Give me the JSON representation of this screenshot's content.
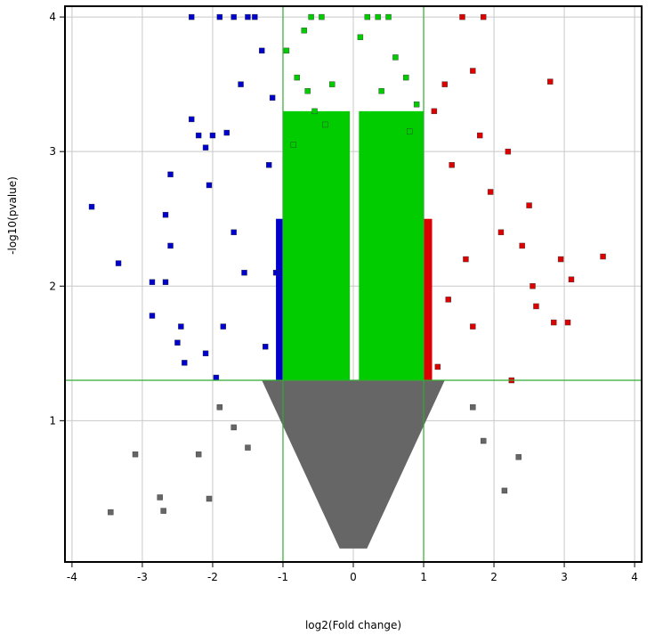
{
  "chart_data": {
    "type": "scatter",
    "title": "",
    "xlabel": "log2(Fold change)",
    "ylabel": "-log10(pvalue)",
    "xlim": [
      -4.1,
      4.1
    ],
    "ylim": [
      -0.05,
      4.08
    ],
    "x_ticks": [
      -4,
      -3,
      -2,
      -1,
      0,
      1,
      2,
      3,
      4
    ],
    "y_ticks": [
      1,
      2,
      3,
      4
    ],
    "grid": true,
    "legend": "none",
    "thresholds": {
      "log2fc": [
        -1,
        1
      ],
      "neg_log10_p": 1.3
    },
    "colors": {
      "down": "#0000cc",
      "unchanged_significant": "#00cc00",
      "up": "#dd0000",
      "not_significant": "#666666",
      "threshold_line": "#33aa33",
      "grid": "#c8c8c8"
    },
    "series": [
      {
        "color_key": "down",
        "points": [
          [
            -3.72,
            2.59
          ],
          [
            -3.34,
            2.17
          ],
          [
            -2.86,
            2.03
          ],
          [
            -2.86,
            1.78
          ],
          [
            -2.67,
            2.03
          ],
          [
            -2.67,
            2.53
          ],
          [
            -2.6,
            2.83
          ],
          [
            -2.6,
            2.3
          ],
          [
            -2.5,
            1.58
          ],
          [
            -2.45,
            1.7
          ],
          [
            -2.4,
            1.43
          ],
          [
            -2.3,
            3.24
          ],
          [
            -2.3,
            4.0
          ],
          [
            -2.2,
            3.12
          ],
          [
            -2.1,
            3.03
          ],
          [
            -2.0,
            3.12
          ],
          [
            -1.9,
            4.0
          ],
          [
            -1.8,
            3.14
          ],
          [
            -1.7,
            4.0
          ],
          [
            -1.6,
            3.5
          ],
          [
            -1.5,
            4.0
          ],
          [
            -1.4,
            4.0
          ],
          [
            -1.3,
            3.75
          ],
          [
            -1.55,
            2.1
          ],
          [
            -1.7,
            2.4
          ],
          [
            -1.85,
            1.7
          ],
          [
            -2.1,
            1.5
          ],
          [
            -2.05,
            2.75
          ],
          [
            -1.95,
            1.32
          ],
          [
            -1.15,
            3.4
          ],
          [
            -1.2,
            2.9
          ],
          [
            -1.1,
            2.1
          ],
          [
            -1.25,
            1.55
          ]
        ]
      },
      {
        "color_key": "up",
        "points": [
          [
            1.15,
            3.3
          ],
          [
            1.3,
            3.5
          ],
          [
            1.4,
            2.9
          ],
          [
            1.55,
            4.0
          ],
          [
            1.7,
            3.6
          ],
          [
            1.8,
            3.12
          ],
          [
            1.85,
            4.0
          ],
          [
            1.95,
            2.7
          ],
          [
            2.1,
            2.4
          ],
          [
            2.2,
            3.0
          ],
          [
            2.25,
            1.3
          ],
          [
            2.4,
            2.3
          ],
          [
            2.5,
            2.6
          ],
          [
            2.55,
            2.0
          ],
          [
            2.6,
            1.85
          ],
          [
            2.8,
            3.52
          ],
          [
            2.85,
            1.73
          ],
          [
            2.95,
            2.2
          ],
          [
            3.05,
            1.73
          ],
          [
            3.1,
            2.05
          ],
          [
            3.55,
            2.22
          ],
          [
            1.2,
            1.4
          ],
          [
            1.35,
            1.9
          ],
          [
            1.6,
            2.2
          ],
          [
            1.7,
            1.7
          ]
        ]
      },
      {
        "color_key": "unchanged_significant",
        "points": [
          [
            -0.95,
            3.75
          ],
          [
            -0.8,
            3.55
          ],
          [
            -0.65,
            3.45
          ],
          [
            -0.55,
            3.3
          ],
          [
            -0.4,
            3.2
          ],
          [
            -0.7,
            3.9
          ],
          [
            -0.6,
            4.0
          ],
          [
            -0.45,
            4.0
          ],
          [
            -0.3,
            3.5
          ],
          [
            0.1,
            3.85
          ],
          [
            0.2,
            4.0
          ],
          [
            0.35,
            4.0
          ],
          [
            0.5,
            4.0
          ],
          [
            0.6,
            3.7
          ],
          [
            0.75,
            3.55
          ],
          [
            0.9,
            3.35
          ],
          [
            0.4,
            3.45
          ],
          [
            -0.85,
            3.05
          ],
          [
            0.8,
            3.15
          ]
        ]
      },
      {
        "color_key": "not_significant",
        "points": [
          [
            -3.45,
            0.32
          ],
          [
            -3.1,
            0.75
          ],
          [
            -2.75,
            0.43
          ],
          [
            -2.7,
            0.33
          ],
          [
            -2.2,
            0.75
          ],
          [
            -2.05,
            0.42
          ],
          [
            -1.9,
            1.1
          ],
          [
            -1.7,
            0.95
          ],
          [
            -1.5,
            0.8
          ],
          [
            2.15,
            0.48
          ],
          [
            2.35,
            0.73
          ],
          [
            1.85,
            0.85
          ],
          [
            1.7,
            1.1
          ]
        ]
      }
    ]
  }
}
